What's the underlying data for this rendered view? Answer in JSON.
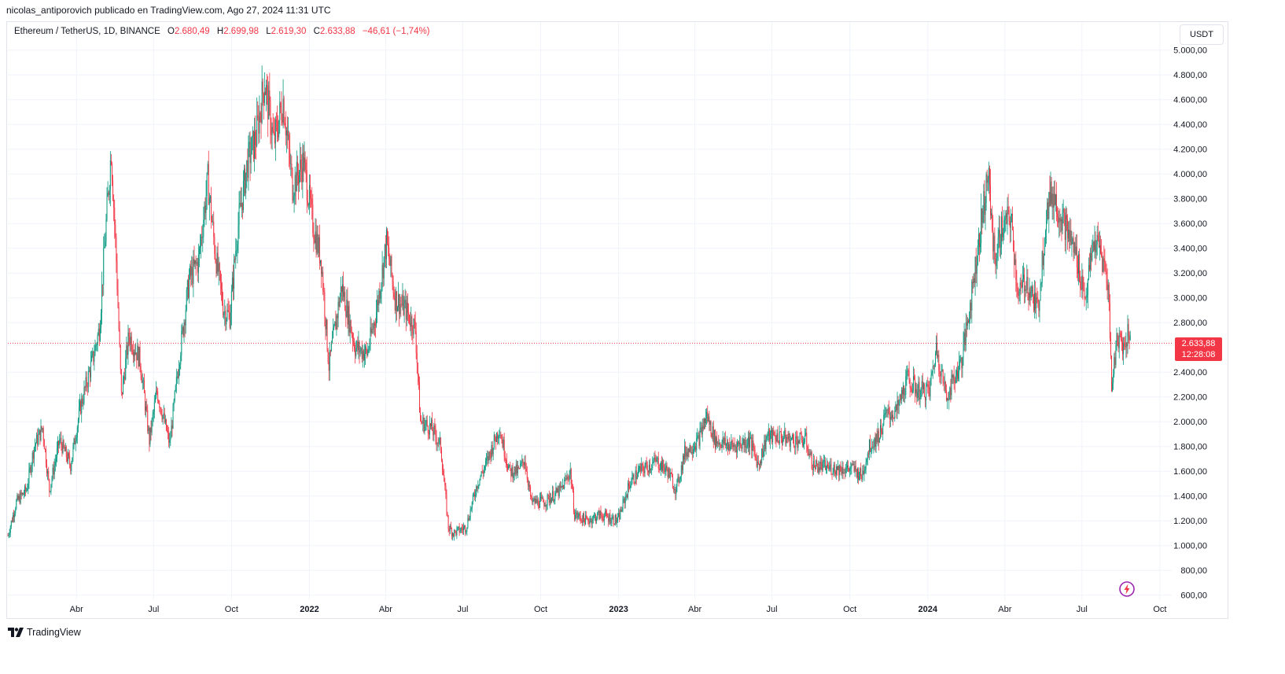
{
  "publisher_line": "nicolas_antiporovich publicado en TradingView.com, Ago 27, 2024 11:31 UTC",
  "legend": {
    "symbol": "Ethereum / TetherUS, 1D, BINANCE",
    "open_label": "O",
    "open": "2.680,49",
    "high_label": "H",
    "high": "2.699,98",
    "low_label": "L",
    "low": "2.619,30",
    "close_label": "C",
    "close": "2.633,88",
    "change": "−46,61 (−1,74%)"
  },
  "currency": "USDT",
  "last_price": {
    "price": "2.633,88",
    "countdown": "12:28:08"
  },
  "footer_brand": "TradingView",
  "colors": {
    "up": "#089981",
    "down": "#f23645",
    "grid": "#f0f3fa",
    "axis_text": "#131722",
    "alert_icon": "#9c27b0"
  },
  "icons": {
    "brand": "tradingview-logo-icon",
    "alert": "lightning-icon"
  },
  "chart_data": {
    "type": "candlestick",
    "interval": "1D",
    "y_axis_position": "right",
    "y_ticks": [
      "5.000,00",
      "4.800,00",
      "4.600,00",
      "4.400,00",
      "4.200,00",
      "4.000,00",
      "3.800,00",
      "3.600,00",
      "3.400,00",
      "3.200,00",
      "3.000,00",
      "2.800,00",
      "2.400,00",
      "2.200,00",
      "2.000,00",
      "1.800,00",
      "1.600,00",
      "1.400,00",
      "1.200,00",
      "1.000,00",
      "800,00",
      "600,00"
    ],
    "y_tick_values": [
      5000,
      4800,
      4600,
      4400,
      4200,
      4000,
      3800,
      3600,
      3400,
      3200,
      3000,
      2800,
      2400,
      2200,
      2000,
      1800,
      1600,
      1400,
      1200,
      1000,
      800,
      600
    ],
    "x_ticks": [
      {
        "label": "Abr",
        "date": "2021-04-01"
      },
      {
        "label": "Jul",
        "date": "2021-07-01"
      },
      {
        "label": "Oct",
        "date": "2021-10-01"
      },
      {
        "label": "2022",
        "date": "2022-01-01",
        "bold": true
      },
      {
        "label": "Abr",
        "date": "2022-04-01"
      },
      {
        "label": "Jul",
        "date": "2022-07-01"
      },
      {
        "label": "Oct",
        "date": "2022-10-01"
      },
      {
        "label": "2023",
        "date": "2023-01-01",
        "bold": true
      },
      {
        "label": "Abr",
        "date": "2023-04-01"
      },
      {
        "label": "Jul",
        "date": "2023-07-01"
      },
      {
        "label": "Oct",
        "date": "2023-10-01"
      },
      {
        "label": "2024",
        "date": "2024-01-01",
        "bold": true
      },
      {
        "label": "Abr",
        "date": "2024-04-01"
      },
      {
        "label": "Jul",
        "date": "2024-07-01"
      },
      {
        "label": "Oct",
        "date": "2024-10-01"
      }
    ],
    "x_range": [
      "2021-01-10",
      "2024-10-15"
    ],
    "y_range": [
      560,
      5100
    ],
    "last_close": 2633.88,
    "grid": true,
    "price_path": [
      [
        "2021-01-10",
        1080
      ],
      [
        "2021-01-20",
        1350
      ],
      [
        "2021-02-01",
        1450
      ],
      [
        "2021-02-10",
        1800
      ],
      [
        "2021-02-20",
        1950
      ],
      [
        "2021-02-28",
        1450
      ],
      [
        "2021-03-12",
        1850
      ],
      [
        "2021-03-25",
        1650
      ],
      [
        "2021-04-05",
        2100
      ],
      [
        "2021-04-20",
        2500
      ],
      [
        "2021-04-28",
        2750
      ],
      [
        "2021-05-05",
        3500
      ],
      [
        "2021-05-12",
        4200
      ],
      [
        "2021-05-18",
        3300
      ],
      [
        "2021-05-24",
        2200
      ],
      [
        "2021-06-02",
        2700
      ],
      [
        "2021-06-15",
        2500
      ],
      [
        "2021-06-26",
        1850
      ],
      [
        "2021-07-05",
        2250
      ],
      [
        "2021-07-20",
        1820
      ],
      [
        "2021-08-01",
        2550
      ],
      [
        "2021-08-12",
        3150
      ],
      [
        "2021-08-23",
        3300
      ],
      [
        "2021-09-03",
        3950
      ],
      [
        "2021-09-12",
        3350
      ],
      [
        "2021-09-22",
        2900
      ],
      [
        "2021-09-29",
        2850
      ],
      [
        "2021-10-08",
        3550
      ],
      [
        "2021-10-20",
        4100
      ],
      [
        "2021-10-30",
        4300
      ],
      [
        "2021-11-09",
        4750
      ],
      [
        "2021-11-20",
        4250
      ],
      [
        "2021-12-01",
        4600
      ],
      [
        "2021-12-12",
        3900
      ],
      [
        "2021-12-25",
        4100
      ],
      [
        "2022-01-05",
        3600
      ],
      [
        "2022-01-15",
        3300
      ],
      [
        "2022-01-24",
        2450
      ],
      [
        "2022-02-08",
        3100
      ],
      [
        "2022-02-24",
        2600
      ],
      [
        "2022-03-10",
        2550
      ],
      [
        "2022-03-20",
        2850
      ],
      [
        "2022-04-02",
        3450
      ],
      [
        "2022-04-12",
        3000
      ],
      [
        "2022-04-25",
        2900
      ],
      [
        "2022-05-06",
        2750
      ],
      [
        "2022-05-12",
        2000
      ],
      [
        "2022-05-25",
        1950
      ],
      [
        "2022-06-05",
        1800
      ],
      [
        "2022-06-14",
        1150
      ],
      [
        "2022-06-20",
        1100
      ],
      [
        "2022-07-05",
        1150
      ],
      [
        "2022-07-18",
        1500
      ],
      [
        "2022-07-28",
        1650
      ],
      [
        "2022-08-13",
        1950
      ],
      [
        "2022-08-25",
        1600
      ],
      [
        "2022-09-05",
        1600
      ],
      [
        "2022-09-12",
        1700
      ],
      [
        "2022-09-20",
        1350
      ],
      [
        "2022-10-05",
        1350
      ],
      [
        "2022-10-25",
        1450
      ],
      [
        "2022-11-05",
        1600
      ],
      [
        "2022-11-10",
        1250
      ],
      [
        "2022-11-25",
        1200
      ],
      [
        "2022-12-10",
        1250
      ],
      [
        "2022-12-31",
        1200
      ],
      [
        "2023-01-14",
        1500
      ],
      [
        "2023-01-25",
        1600
      ],
      [
        "2023-02-15",
        1680
      ],
      [
        "2023-02-28",
        1600
      ],
      [
        "2023-03-10",
        1450
      ],
      [
        "2023-03-20",
        1750
      ],
      [
        "2023-04-05",
        1850
      ],
      [
        "2023-04-15",
        2050
      ],
      [
        "2023-04-25",
        1850
      ],
      [
        "2023-05-15",
        1800
      ],
      [
        "2023-06-05",
        1850
      ],
      [
        "2023-06-15",
        1650
      ],
      [
        "2023-06-25",
        1880
      ],
      [
        "2023-07-10",
        1880
      ],
      [
        "2023-07-25",
        1850
      ],
      [
        "2023-08-10",
        1850
      ],
      [
        "2023-08-18",
        1650
      ],
      [
        "2023-09-05",
        1630
      ],
      [
        "2023-09-20",
        1620
      ],
      [
        "2023-10-05",
        1620
      ],
      [
        "2023-10-15",
        1560
      ],
      [
        "2023-10-24",
        1800
      ],
      [
        "2023-11-05",
        1900
      ],
      [
        "2023-11-12",
        2050
      ],
      [
        "2023-11-25",
        2080
      ],
      [
        "2023-12-08",
        2350
      ],
      [
        "2023-12-20",
        2250
      ],
      [
        "2024-01-03",
        2250
      ],
      [
        "2024-01-11",
        2600
      ],
      [
        "2024-01-23",
        2200
      ],
      [
        "2024-02-10",
        2500
      ],
      [
        "2024-02-20",
        2950
      ],
      [
        "2024-03-01",
        3450
      ],
      [
        "2024-03-12",
        4000
      ],
      [
        "2024-03-20",
        3300
      ],
      [
        "2024-03-28",
        3550
      ],
      [
        "2024-04-08",
        3650
      ],
      [
        "2024-04-17",
        3000
      ],
      [
        "2024-04-25",
        3150
      ],
      [
        "2024-05-10",
        2900
      ],
      [
        "2024-05-20",
        3700
      ],
      [
        "2024-05-27",
        3850
      ],
      [
        "2024-06-10",
        3600
      ],
      [
        "2024-06-24",
        3350
      ],
      [
        "2024-07-05",
        3000
      ],
      [
        "2024-07-15",
        3450
      ],
      [
        "2024-07-22",
        3400
      ],
      [
        "2024-08-01",
        3100
      ],
      [
        "2024-08-05",
        2300
      ],
      [
        "2024-08-12",
        2700
      ],
      [
        "2024-08-20",
        2600
      ],
      [
        "2024-08-25",
        2750
      ],
      [
        "2024-08-27",
        2633.88
      ]
    ]
  }
}
